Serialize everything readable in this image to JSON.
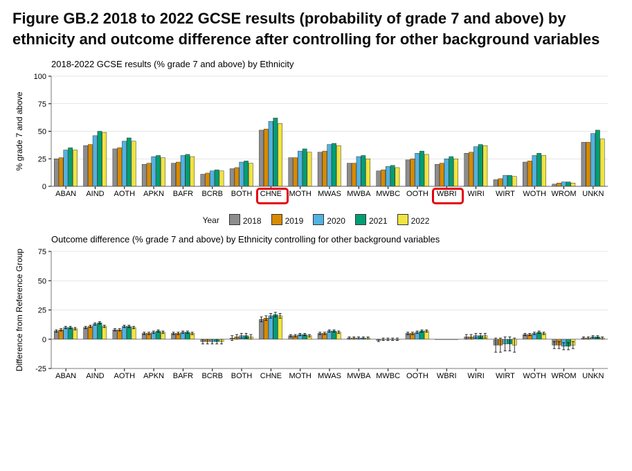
{
  "figure_title": "Figure GB.2 2018 to 2022 GCSE results (probability of grade 7 and above) by ethnicity and outcome difference after controlling for other background variables",
  "legend_label": "Year",
  "years": [
    "2018",
    "2019",
    "2020",
    "2021",
    "2022"
  ],
  "year_colors": {
    "2018": "#8d8d8d",
    "2019": "#d88a00",
    "2020": "#52b2e0",
    "2021": "#009e73",
    "2022": "#f0e442"
  },
  "bar_stroke": "#333333",
  "background_color": "#ffffff",
  "panel_bg": "#ffffff",
  "grid_color": "#cccccc",
  "categories": [
    "ABAN",
    "AIND",
    "AOTH",
    "APKN",
    "BAFR",
    "BCRB",
    "BOTH",
    "CHNE",
    "MOTH",
    "MWAS",
    "MWBA",
    "MWBC",
    "OOTH",
    "WBRI",
    "WIRI",
    "WIRT",
    "WOTH",
    "WROM",
    "UNKN"
  ],
  "highlighted_categories": [
    "CHNE",
    "WBRI"
  ],
  "highlight_color": "#e3000f",
  "chart_top": {
    "title": "2018-2022 GCSE results (% grade 7 and above) by Ethnicity",
    "y_label": "% grade 7 and above",
    "ylim": [
      0,
      100
    ],
    "ytick_step": 25,
    "type": "grouped_bar",
    "values": {
      "ABAN": [
        25,
        26,
        33,
        35,
        33
      ],
      "AIND": [
        37,
        38,
        46,
        50,
        49
      ],
      "AOTH": [
        34,
        35,
        41,
        44,
        41
      ],
      "APKN": [
        20,
        21,
        27,
        28,
        26
      ],
      "BAFR": [
        21,
        22,
        28,
        29,
        27
      ],
      "BCRB": [
        11,
        12,
        14,
        15,
        14
      ],
      "BOTH": [
        16,
        17,
        22,
        23,
        21
      ],
      "CHNE": [
        51,
        52,
        59,
        62,
        57
      ],
      "MOTH": [
        26,
        26,
        32,
        34,
        31
      ],
      "MWAS": [
        31,
        32,
        38,
        39,
        37
      ],
      "MWBA": [
        21,
        21,
        27,
        28,
        25
      ],
      "MWBC": [
        14,
        15,
        18,
        19,
        17
      ],
      "OOTH": [
        24,
        25,
        30,
        32,
        29
      ],
      "WBRI": [
        20,
        21,
        25,
        27,
        25
      ],
      "WIRI": [
        30,
        31,
        36,
        38,
        37
      ],
      "WIRT": [
        6,
        7,
        10,
        10,
        9
      ],
      "WOTH": [
        22,
        23,
        28,
        30,
        28
      ],
      "WROM": [
        2,
        3,
        4,
        4,
        3
      ],
      "UNKN": [
        40,
        40,
        48,
        51,
        43
      ]
    },
    "title_fontsize": 13,
    "label_fontsize": 12,
    "tick_fontsize": 11
  },
  "chart_bottom": {
    "title": "Outcome difference (% grade 7 and above) by Ethnicity controlling for other background variables",
    "y_label": "Difference from Reference Group",
    "ylim": [
      -25,
      75
    ],
    "yticks": [
      -25,
      0,
      25,
      50,
      75
    ],
    "type": "grouped_bar_with_errorbars",
    "values": {
      "ABAN": [
        7,
        8,
        10,
        10,
        9
      ],
      "AIND": [
        10,
        11,
        13,
        14,
        11
      ],
      "AOTH": [
        8,
        8,
        11,
        11,
        10
      ],
      "APKN": [
        5,
        5,
        6,
        7,
        6
      ],
      "BAFR": [
        5,
        5,
        6,
        6,
        5
      ],
      "BCRB": [
        -2,
        -2,
        -2,
        -2,
        -2
      ],
      "BOTH": [
        1,
        2,
        3,
        3,
        2
      ],
      "CHNE": [
        17,
        18,
        20,
        21,
        20
      ],
      "MOTH": [
        3,
        3,
        4,
        4,
        3
      ],
      "MWAS": [
        5,
        5,
        7,
        7,
        6
      ],
      "MWBA": [
        1,
        1,
        1,
        1,
        1
      ],
      "MWBC": [
        -1,
        0,
        0,
        0,
        0
      ],
      "OOTH": [
        5,
        5,
        6,
        7,
        7
      ],
      "WBRI": [
        0,
        0,
        0,
        0,
        0
      ],
      "WIRI": [
        2,
        2,
        3,
        3,
        3
      ],
      "WIRT": [
        -5,
        -5,
        -4,
        -4,
        -5
      ],
      "WOTH": [
        4,
        4,
        5,
        6,
        5
      ],
      "WROM": [
        -5,
        -5,
        -6,
        -6,
        -5
      ],
      "UNKN": [
        1,
        1,
        2,
        2,
        1
      ]
    },
    "errorbars": {
      "ABAN": [
        1,
        1,
        1,
        1,
        1
      ],
      "AIND": [
        1,
        1,
        1,
        1,
        1
      ],
      "AOTH": [
        1,
        1,
        1,
        1,
        1
      ],
      "APKN": [
        1,
        1,
        1,
        1,
        1
      ],
      "BAFR": [
        1,
        1,
        1,
        1,
        1
      ],
      "BCRB": [
        2,
        2,
        2,
        2,
        2
      ],
      "BOTH": [
        2,
        2,
        2,
        2,
        2
      ],
      "CHNE": [
        2,
        2,
        2,
        2,
        2
      ],
      "MOTH": [
        1,
        1,
        1,
        1,
        1
      ],
      "MWAS": [
        1,
        1,
        1,
        1,
        1
      ],
      "MWBA": [
        1,
        1,
        1,
        1,
        1
      ],
      "MWBC": [
        1,
        1,
        1,
        1,
        1
      ],
      "OOTH": [
        1,
        1,
        1,
        1,
        1
      ],
      "WBRI": [
        0,
        0,
        0,
        0,
        0
      ],
      "WIRI": [
        2,
        2,
        2,
        2,
        2
      ],
      "WIRT": [
        6,
        6,
        6,
        6,
        6
      ],
      "WOTH": [
        1,
        1,
        1,
        1,
        1
      ],
      "WROM": [
        3,
        3,
        3,
        3,
        3
      ],
      "UNKN": [
        1,
        1,
        1,
        1,
        1
      ]
    },
    "errorbar_color": "#000000",
    "title_fontsize": 13,
    "label_fontsize": 12,
    "tick_fontsize": 11
  }
}
